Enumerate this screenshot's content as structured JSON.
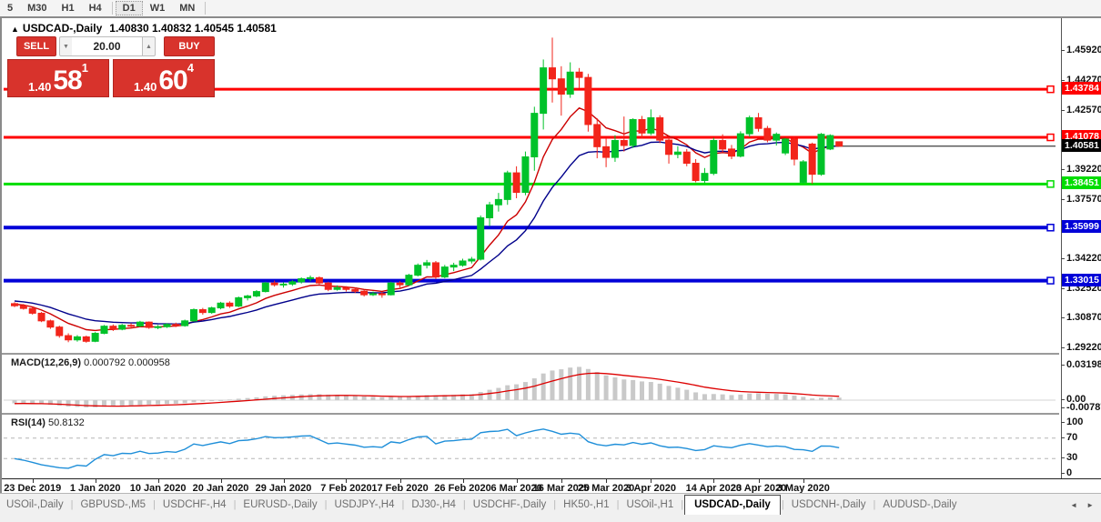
{
  "toolbar": {
    "timeframes": [
      {
        "label": "5",
        "active": false
      },
      {
        "label": "M30",
        "active": false
      },
      {
        "label": "H1",
        "active": false
      },
      {
        "label": "H4",
        "active": false
      },
      {
        "sep": true
      },
      {
        "label": "D1",
        "active": true
      },
      {
        "label": "W1",
        "active": false
      },
      {
        "label": "MN",
        "active": false
      },
      {
        "sep": true
      }
    ]
  },
  "chart": {
    "collapse_icon": "▲",
    "title": "USDCAD-,Daily",
    "ohlc_text": "1.40830 1.40832 1.40545 1.40581",
    "trade_panel": {
      "sell_label": "SELL",
      "buy_label": "BUY",
      "volume": "20.00",
      "down_glyph": "▼",
      "up_glyph": "▲",
      "sell_price": {
        "prefix": "1.40",
        "big": "58",
        "sup": "1"
      },
      "buy_price": {
        "prefix": "1.40",
        "big": "60",
        "sup": "4"
      }
    }
  },
  "chart_data": {
    "type": "candlestick",
    "symbol": "USDCAD-",
    "timeframe": "Daily",
    "colors": {
      "bull": "#00c22a",
      "bear": "#f2251b",
      "ma_fast": "#cc0000",
      "ma_slow": "#00008b"
    },
    "price_axis": {
      "top_price": 1.4717,
      "bottom_price": 1.2895,
      "ticks": [
        "1.45920",
        "1.44270",
        "1.42570",
        "1.39220",
        "1.37570",
        "1.34220",
        "1.32520",
        "1.30870",
        "1.29220"
      ]
    },
    "levels": [
      {
        "price": 1.43784,
        "label": "1.43784",
        "color": "#ff0000",
        "width": 3
      },
      {
        "price": 1.41078,
        "label": "1.41078",
        "color": "#ff0000",
        "width": 3
      },
      {
        "price": 1.38451,
        "label": "1.38451",
        "color": "#00dd00",
        "width": 3
      },
      {
        "price": 1.35999,
        "label": "1.35999",
        "color": "#0000d8",
        "width": 4
      },
      {
        "price": 1.33015,
        "label": "1.33015",
        "color": "#0000d8",
        "width": 4
      }
    ],
    "current_price": {
      "price": 1.40581,
      "label": "1.40581",
      "color": "#000000"
    },
    "ma": [
      {
        "type": "ema",
        "period": 8,
        "color": "#cc0000"
      },
      {
        "type": "ema",
        "period": 17,
        "color": "#00008b"
      }
    ],
    "macd": {
      "label": "MACD(12,26,9)",
      "values_text": "0.000792 0.000958",
      "fast": 12,
      "slow": 26,
      "signal": 9,
      "hist_color": "#c9c9c9",
      "line_color": "#dd0000",
      "scale_ticks": [
        {
          "v": 0.031987,
          "label": "0.031987"
        },
        {
          "v": 0,
          "label": "0.00"
        },
        {
          "v": -0.007879,
          "label": "-0.007879"
        }
      ]
    },
    "rsi": {
      "label": "RSI(14)",
      "value_text": "50.8132",
      "period": 14,
      "color": "#1f8fd9",
      "level_lines": [
        70,
        30
      ],
      "scale_ticks": [
        {
          "v": 100,
          "label": "100"
        },
        {
          "v": 70,
          "label": "70"
        },
        {
          "v": 30,
          "label": "30"
        },
        {
          "v": 0,
          "label": "0"
        }
      ]
    },
    "date_labels": [
      {
        "i": 2,
        "label": "23 Dec 2019"
      },
      {
        "i": 9,
        "label": "1 Jan 2020"
      },
      {
        "i": 16,
        "label": "10 Jan 2020"
      },
      {
        "i": 23,
        "label": "20 Jan 2020"
      },
      {
        "i": 30,
        "label": "29 Jan 2020"
      },
      {
        "i": 37,
        "label": "7 Feb 2020"
      },
      {
        "i": 43,
        "label": "17 Feb 2020"
      },
      {
        "i": 50,
        "label": "26 Feb 2020"
      },
      {
        "i": 56,
        "label": "6 Mar 2020"
      },
      {
        "i": 61,
        "label": "16 Mar 2020"
      },
      {
        "i": 66,
        "label": "25 Mar 2020"
      },
      {
        "i": 71,
        "label": "3 Apr 2020"
      },
      {
        "i": 78,
        "label": "14 Apr 2020"
      },
      {
        "i": 83,
        "label": "23 Apr 2020"
      },
      {
        "i": 88,
        "label": "3 May 2020"
      }
    ],
    "warmup_closes": [
      1.334,
      1.333,
      1.3345,
      1.3325,
      1.331,
      1.332,
      1.33,
      1.329,
      1.3295,
      1.3275,
      1.328,
      1.326,
      1.325,
      1.3262,
      1.324,
      1.3228,
      1.324,
      1.322,
      1.321,
      1.3218,
      1.32,
      1.3195,
      1.3205,
      1.3188,
      1.318,
      1.319,
      1.3175,
      1.3168,
      1.3178,
      1.3162,
      1.3158,
      1.3168,
      1.3172,
      1.3165
    ],
    "candles": [
      [
        1.3172,
        1.318,
        1.3152,
        1.316
      ],
      [
        1.316,
        1.317,
        1.3138,
        1.3145
      ],
      [
        1.3145,
        1.3152,
        1.311,
        1.3118
      ],
      [
        1.3118,
        1.3125,
        1.3068,
        1.3075
      ],
      [
        1.3075,
        1.3082,
        1.303,
        1.304
      ],
      [
        1.304,
        1.3048,
        1.298,
        1.2992
      ],
      [
        1.2992,
        1.3005,
        1.2955,
        1.2968
      ],
      [
        1.2968,
        1.2995,
        1.2958,
        1.2985
      ],
      [
        1.2985,
        1.2992,
        1.2952,
        1.296
      ],
      [
        1.296,
        1.3012,
        1.2955,
        1.3005
      ],
      [
        1.3005,
        1.3052,
        1.3,
        1.3045
      ],
      [
        1.3045,
        1.3055,
        1.3018,
        1.3028
      ],
      [
        1.3028,
        1.3058,
        1.3022,
        1.305
      ],
      [
        1.305,
        1.3062,
        1.3035,
        1.3046
      ],
      [
        1.3046,
        1.3075,
        1.304,
        1.3068
      ],
      [
        1.3068,
        1.3072,
        1.303,
        1.3038
      ],
      [
        1.3038,
        1.3052,
        1.3028,
        1.3042
      ],
      [
        1.3042,
        1.3062,
        1.3035,
        1.3055
      ],
      [
        1.3055,
        1.3065,
        1.304,
        1.3048
      ],
      [
        1.3048,
        1.3082,
        1.3042,
        1.3075
      ],
      [
        1.3075,
        1.3145,
        1.307,
        1.3138
      ],
      [
        1.3138,
        1.3148,
        1.311,
        1.3122
      ],
      [
        1.3122,
        1.3155,
        1.3115,
        1.3148
      ],
      [
        1.3148,
        1.3182,
        1.314,
        1.3175
      ],
      [
        1.3175,
        1.3185,
        1.3148,
        1.3158
      ],
      [
        1.3158,
        1.3212,
        1.3152,
        1.3205
      ],
      [
        1.3205,
        1.3222,
        1.319,
        1.3215
      ],
      [
        1.3215,
        1.3248,
        1.3208,
        1.324
      ],
      [
        1.324,
        1.3295,
        1.3235,
        1.3288
      ],
      [
        1.3288,
        1.3302,
        1.3268,
        1.3278
      ],
      [
        1.3278,
        1.3292,
        1.3262,
        1.3282
      ],
      [
        1.3282,
        1.3305,
        1.3272,
        1.3295
      ],
      [
        1.3295,
        1.332,
        1.3285,
        1.3312
      ],
      [
        1.3312,
        1.333,
        1.3298,
        1.3318
      ],
      [
        1.3318,
        1.3325,
        1.328,
        1.3288
      ],
      [
        1.3288,
        1.3295,
        1.3242,
        1.3252
      ],
      [
        1.3252,
        1.3275,
        1.3245,
        1.3262
      ],
      [
        1.3262,
        1.327,
        1.324,
        1.3252
      ],
      [
        1.3252,
        1.3262,
        1.3232,
        1.3242
      ],
      [
        1.3242,
        1.325,
        1.3212,
        1.3222
      ],
      [
        1.3222,
        1.324,
        1.3215,
        1.3228
      ],
      [
        1.3228,
        1.3238,
        1.3205,
        1.3222
      ],
      [
        1.3222,
        1.3295,
        1.3218,
        1.3288
      ],
      [
        1.3288,
        1.3298,
        1.3262,
        1.3278
      ],
      [
        1.3278,
        1.334,
        1.3272,
        1.3332
      ],
      [
        1.3332,
        1.3398,
        1.3325,
        1.3388
      ],
      [
        1.3388,
        1.3418,
        1.337,
        1.3402
      ],
      [
        1.3402,
        1.3412,
        1.331,
        1.3322
      ],
      [
        1.3322,
        1.339,
        1.3315,
        1.3378
      ],
      [
        1.3378,
        1.3402,
        1.3355,
        1.3388
      ],
      [
        1.3388,
        1.3425,
        1.338,
        1.3412
      ],
      [
        1.3412,
        1.3435,
        1.3398,
        1.3422
      ],
      [
        1.3422,
        1.3668,
        1.3415,
        1.3655
      ],
      [
        1.3655,
        1.3745,
        1.3608,
        1.3728
      ],
      [
        1.3728,
        1.3795,
        1.369,
        1.3758
      ],
      [
        1.3758,
        1.392,
        1.3728,
        1.3908
      ],
      [
        1.3908,
        1.3945,
        1.3765,
        1.3798
      ],
      [
        1.3798,
        1.4028,
        1.3782,
        1.3998
      ],
      [
        1.3998,
        1.428,
        1.392,
        1.4243
      ],
      [
        1.4243,
        1.4546,
        1.4152,
        1.4499
      ],
      [
        1.4499,
        1.4669,
        1.4304,
        1.4437
      ],
      [
        1.4437,
        1.4508,
        1.423,
        1.4351
      ],
      [
        1.4351,
        1.453,
        1.433,
        1.4475
      ],
      [
        1.4475,
        1.4498,
        1.4385,
        1.4445
      ],
      [
        1.4445,
        1.4465,
        1.414,
        1.418
      ],
      [
        1.418,
        1.4215,
        1.399,
        1.4055
      ],
      [
        1.4055,
        1.4105,
        1.394,
        1.3995
      ],
      [
        1.3995,
        1.412,
        1.397,
        1.409
      ],
      [
        1.409,
        1.4225,
        1.4028,
        1.4062
      ],
      [
        1.4062,
        1.4215,
        1.4048,
        1.4208
      ],
      [
        1.4208,
        1.4228,
        1.4105,
        1.4132
      ],
      [
        1.4132,
        1.4265,
        1.412,
        1.4218
      ],
      [
        1.4218,
        1.4232,
        1.4075,
        1.4092
      ],
      [
        1.4092,
        1.411,
        1.396,
        1.4012
      ],
      [
        1.4012,
        1.4058,
        1.399,
        1.4025
      ],
      [
        1.4025,
        1.4042,
        1.3945,
        1.3962
      ],
      [
        1.3962,
        1.3985,
        1.3855,
        1.3865
      ],
      [
        1.3865,
        1.3935,
        1.385,
        1.3905
      ],
      [
        1.3905,
        1.4105,
        1.3895,
        1.409
      ],
      [
        1.409,
        1.4125,
        1.4022,
        1.4042
      ],
      [
        1.4042,
        1.4065,
        1.3985,
        1.4002
      ],
      [
        1.4002,
        1.4142,
        1.3995,
        1.4128
      ],
      [
        1.4128,
        1.423,
        1.411,
        1.4218
      ],
      [
        1.4218,
        1.4245,
        1.414,
        1.4158
      ],
      [
        1.4158,
        1.4172,
        1.408,
        1.4092
      ],
      [
        1.4092,
        1.4135,
        1.4062,
        1.4125
      ],
      [
        1.402,
        1.4105,
        1.4008,
        1.4098
      ],
      [
        1.4098,
        1.411,
        1.395,
        1.3985
      ],
      [
        1.3855,
        1.398,
        1.3848,
        1.397
      ],
      [
        1.407,
        1.4078,
        1.3846,
        1.39
      ],
      [
        1.39,
        1.4132,
        1.3892,
        1.4125
      ],
      [
        1.4042,
        1.4125,
        1.4036,
        1.4118
      ],
      [
        1.4083,
        1.40832,
        1.40545,
        1.40581
      ]
    ]
  },
  "tabs": {
    "left_arrow": "◄",
    "right_arrow": "►",
    "items": [
      {
        "label": "USOil-,Daily",
        "active": false
      },
      {
        "label": "GBPUSD-,M5",
        "active": false
      },
      {
        "label": "USDCHF-,H4",
        "active": false
      },
      {
        "label": "EURUSD-,Daily",
        "active": false
      },
      {
        "label": "USDJPY-,H4",
        "active": false
      },
      {
        "label": "DJ30-,H4",
        "active": false
      },
      {
        "label": "USDCHF-,Daily",
        "active": false
      },
      {
        "label": "HK50-,H1",
        "active": false
      },
      {
        "label": "USOil-,H1",
        "active": false
      },
      {
        "label": "USDCAD-,Daily",
        "active": true
      },
      {
        "label": "USDCNH-,Daily",
        "active": false
      },
      {
        "label": "AUDUSD-,Daily",
        "active": false
      }
    ]
  }
}
